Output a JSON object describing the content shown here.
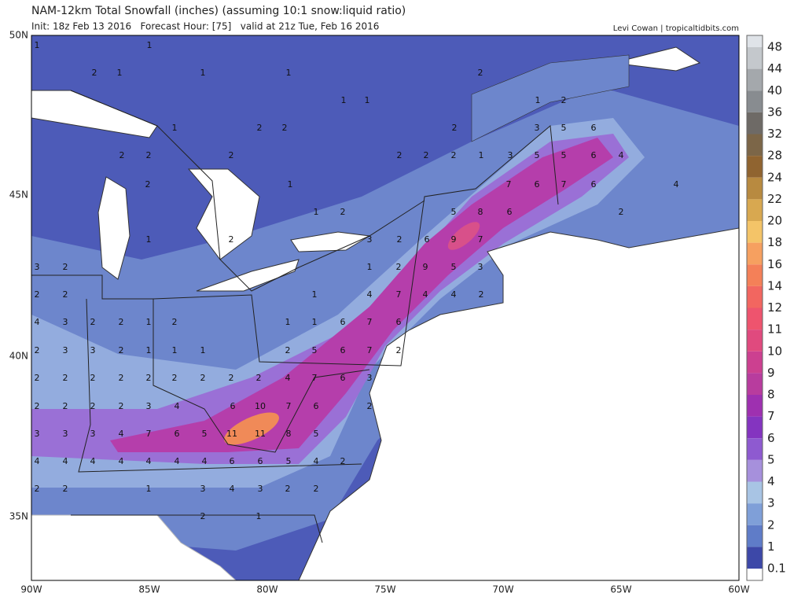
{
  "header": {
    "title": "NAM-12km Total Snowfall (inches) (assuming 10:1 snow:liquid ratio)",
    "subtitle": "Init: 18z Feb 13 2016   Forecast Hour: [75]   valid at 21z Tue, Feb 16 2016",
    "credit": "Levi Cowan | tropicaltidbits.com"
  },
  "axes": {
    "lat_labels": [
      "50N",
      "45N",
      "40N",
      "35N"
    ],
    "lon_labels": [
      "90W",
      "85W",
      "80W",
      "75W",
      "70W",
      "65W",
      "60W"
    ]
  },
  "colorbar": {
    "levels": [
      48,
      44,
      40,
      36,
      32,
      28,
      24,
      22,
      20,
      18,
      16,
      14,
      12,
      11,
      10,
      9,
      8,
      7,
      6,
      5,
      4,
      3,
      2,
      1,
      0.1
    ],
    "colors": [
      "#dfe3e8",
      "#c4c8cc",
      "#a4a8ac",
      "#888c90",
      "#6e6a66",
      "#7c6648",
      "#906430",
      "#b88a40",
      "#d8a850",
      "#f4c468",
      "#f6a060",
      "#f48058",
      "#f26660",
      "#ee546e",
      "#e04a7e",
      "#cc4090",
      "#b83c9e",
      "#9e30b0",
      "#8434c0",
      "#8e5ad0",
      "#a690dc",
      "#a8c4e4",
      "#7f9fd8",
      "#5f7cc8",
      "#3d48a8"
    ]
  },
  "map_labels": [
    [
      1,
      1
    ],
    [
      2,
      1,
      1,
      1,
      2
    ],
    [
      1,
      1,
      1,
      2
    ],
    [
      1,
      2,
      2,
      2,
      3,
      5,
      6
    ],
    [
      2,
      2,
      2,
      2,
      2,
      2,
      1,
      3,
      5,
      5,
      6,
      4
    ],
    [
      2,
      1,
      7,
      6,
      7,
      6,
      4
    ],
    [
      1,
      2,
      5,
      8,
      6,
      2
    ],
    [
      1,
      2,
      3,
      2,
      6,
      9,
      7
    ],
    [
      3,
      2,
      1,
      2,
      9,
      5,
      3
    ],
    [
      2,
      2,
      1,
      4,
      7,
      4,
      4,
      2
    ],
    [
      4,
      3,
      2,
      2,
      1,
      2,
      1,
      1,
      6,
      7,
      6
    ],
    [
      2,
      3,
      3,
      2,
      1,
      1,
      1,
      2,
      5,
      6,
      7,
      2
    ],
    [
      2,
      2,
      2,
      2,
      2,
      2,
      2,
      2,
      2,
      4,
      7,
      6,
      3
    ],
    [
      2,
      2,
      2,
      2,
      3,
      4,
      6,
      10,
      7,
      6,
      2
    ],
    [
      3,
      3,
      3,
      4,
      7,
      6,
      5,
      11,
      11,
      8,
      5
    ],
    [
      4,
      4,
      4,
      4,
      4,
      4,
      4,
      6,
      6,
      5,
      4,
      2
    ],
    [
      2,
      2,
      1,
      3,
      4,
      3,
      2,
      2
    ],
    [
      2,
      1
    ]
  ]
}
